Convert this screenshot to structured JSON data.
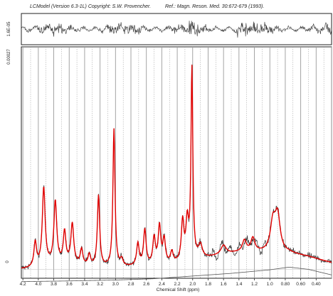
{
  "header": {
    "program": "LCModel (Version 6.3-1L) Copyright: S.W. Provencher.",
    "reference": "Ref.: Magn. Reson. Med. 30:672-679 (1993)."
  },
  "chart_data": {
    "type": "line",
    "xlabel": "Chemical Shift (ppm)",
    "ylabel": "",
    "x_reversed": true,
    "xlim": [
      4.22,
      0.2
    ],
    "x_ticks": [
      "4.2",
      "4.0",
      "3.8",
      "3.6",
      "3.4",
      "3.2",
      "3.0",
      "2.8",
      "2.6",
      "2.4",
      "2.2",
      "2.0",
      "1.8",
      "1.6",
      "1.4",
      "1.2",
      "1.0",
      "0.80",
      "0.60",
      "0.40"
    ],
    "residual_axis_label": "1.6E-05",
    "main_axis_label": "0.00027",
    "zero_label": "0",
    "main_ylim": [
      -0.04,
      1.0
    ],
    "baseline_label": "",
    "grid": "vertical lines at each 0.1 ppm",
    "colors": {
      "data": "#333333",
      "fit": "#e00000",
      "baseline": "#555555",
      "grid": "#9a9a9a",
      "frame": "#222222"
    },
    "peaks": [
      {
        "ppm": 4.04,
        "height": 0.11,
        "width": 0.02
      },
      {
        "ppm": 3.93,
        "height": 0.35,
        "width": 0.022
      },
      {
        "ppm": 3.78,
        "height": 0.28,
        "width": 0.022
      },
      {
        "ppm": 3.66,
        "height": 0.14,
        "width": 0.02
      },
      {
        "ppm": 3.56,
        "height": 0.18,
        "width": 0.022
      },
      {
        "ppm": 3.44,
        "height": 0.07,
        "width": 0.02
      },
      {
        "ppm": 3.34,
        "height": 0.05,
        "width": 0.02
      },
      {
        "ppm": 3.22,
        "height": 0.32,
        "width": 0.018
      },
      {
        "ppm": 3.02,
        "height": 0.62,
        "width": 0.016
      },
      {
        "ppm": 2.92,
        "height": 0.03,
        "width": 0.02
      },
      {
        "ppm": 2.71,
        "height": 0.1,
        "width": 0.02
      },
      {
        "ppm": 2.62,
        "height": 0.16,
        "width": 0.02
      },
      {
        "ppm": 2.5,
        "height": 0.12,
        "width": 0.02
      },
      {
        "ppm": 2.43,
        "height": 0.17,
        "width": 0.02
      },
      {
        "ppm": 2.37,
        "height": 0.11,
        "width": 0.02
      },
      {
        "ppm": 2.27,
        "height": 0.05,
        "width": 0.02
      },
      {
        "ppm": 2.13,
        "height": 0.18,
        "width": 0.02
      },
      {
        "ppm": 2.07,
        "height": 0.17,
        "width": 0.02
      },
      {
        "ppm": 2.01,
        "height": 0.86,
        "width": 0.014
      },
      {
        "ppm": 1.9,
        "height": 0.06,
        "width": 0.03
      },
      {
        "ppm": 1.6,
        "height": 0.04,
        "width": 0.04
      },
      {
        "ppm": 1.33,
        "height": 0.05,
        "width": 0.03
      },
      {
        "ppm": 1.22,
        "height": 0.06,
        "width": 0.03
      },
      {
        "ppm": 0.96,
        "height": 0.13,
        "width": 0.04
      },
      {
        "ppm": 0.9,
        "height": 0.16,
        "width": 0.04
      }
    ],
    "baseline": [
      {
        "ppm": 4.22,
        "y": -0.055
      },
      {
        "ppm": 3.6,
        "y": -0.052
      },
      {
        "ppm": 3.0,
        "y": -0.048
      },
      {
        "ppm": 2.5,
        "y": -0.042
      },
      {
        "ppm": 2.0,
        "y": -0.03
      },
      {
        "ppm": 1.5,
        "y": -0.018
      },
      {
        "ppm": 1.0,
        "y": -0.002
      },
      {
        "ppm": 0.75,
        "y": 0.01
      },
      {
        "ppm": 0.5,
        "y": 0.0
      },
      {
        "ppm": 0.2,
        "y": -0.025
      }
    ]
  }
}
